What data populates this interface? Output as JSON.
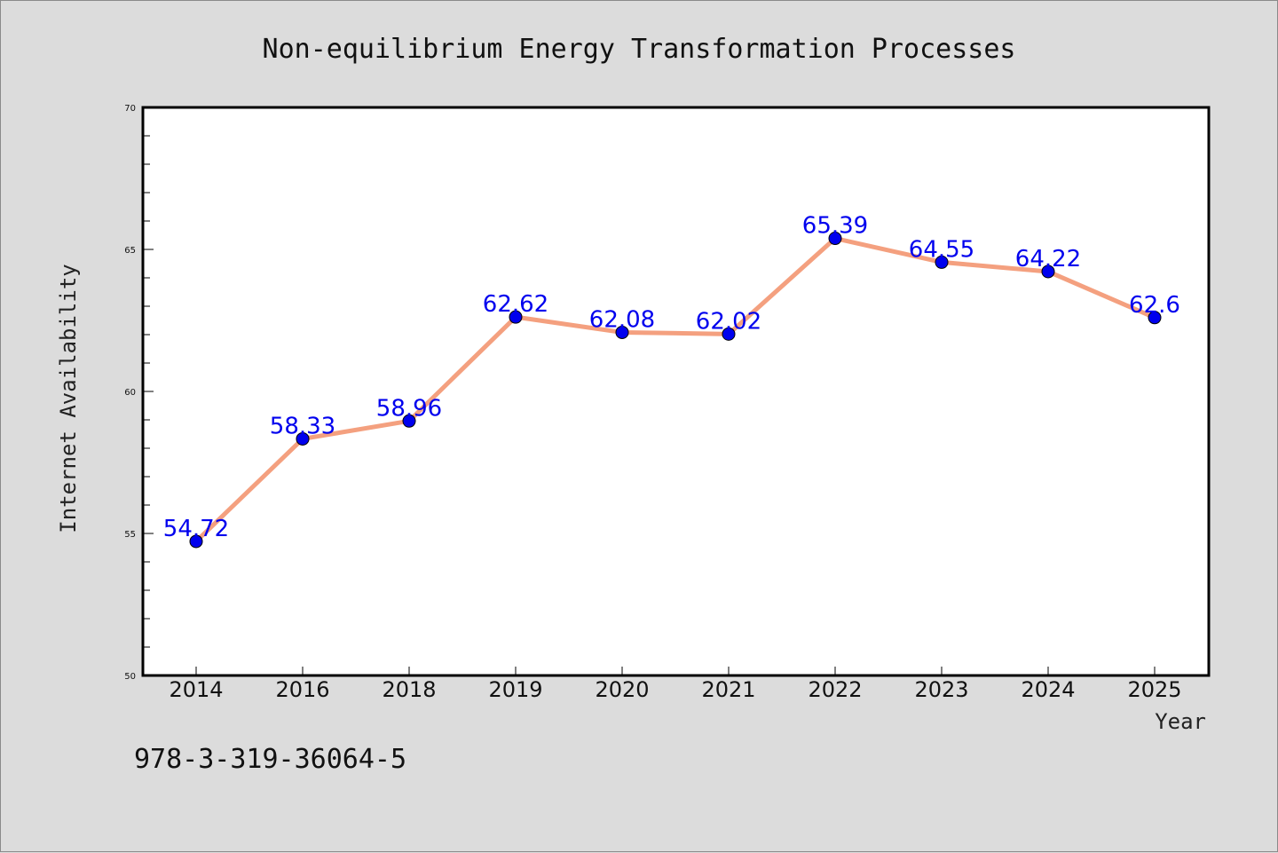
{
  "chart_data": {
    "type": "line",
    "title": "Non-equilibrium Energy Transformation Processes",
    "xlabel": "Year",
    "ylabel": "Internet Availability",
    "categories": [
      "2014",
      "2016",
      "2018",
      "2019",
      "2020",
      "2021",
      "2022",
      "2023",
      "2024",
      "2025"
    ],
    "series": [
      {
        "values": [
          54.72,
          58.33,
          58.96,
          62.62,
          62.08,
          62.02,
          65.39,
          64.55,
          64.22,
          62.6
        ],
        "data_labels": [
          "54.72",
          "58.33",
          "58.96",
          "62.62",
          "62.08",
          "62.02",
          "65.39",
          "64.55",
          "64.22",
          "62.6"
        ]
      }
    ],
    "ylim": [
      50,
      70
    ],
    "yticks": [
      "50",
      "55",
      "60",
      "65",
      "70"
    ],
    "grid": false,
    "legend": "none",
    "colors": {
      "line": "#f4a07f",
      "marker": "#0000ee",
      "label": "#0000ee",
      "plot_bg": "#ffffff",
      "page_bg": "#dcdcdc"
    }
  },
  "footnote": "978-3-319-36064-5"
}
